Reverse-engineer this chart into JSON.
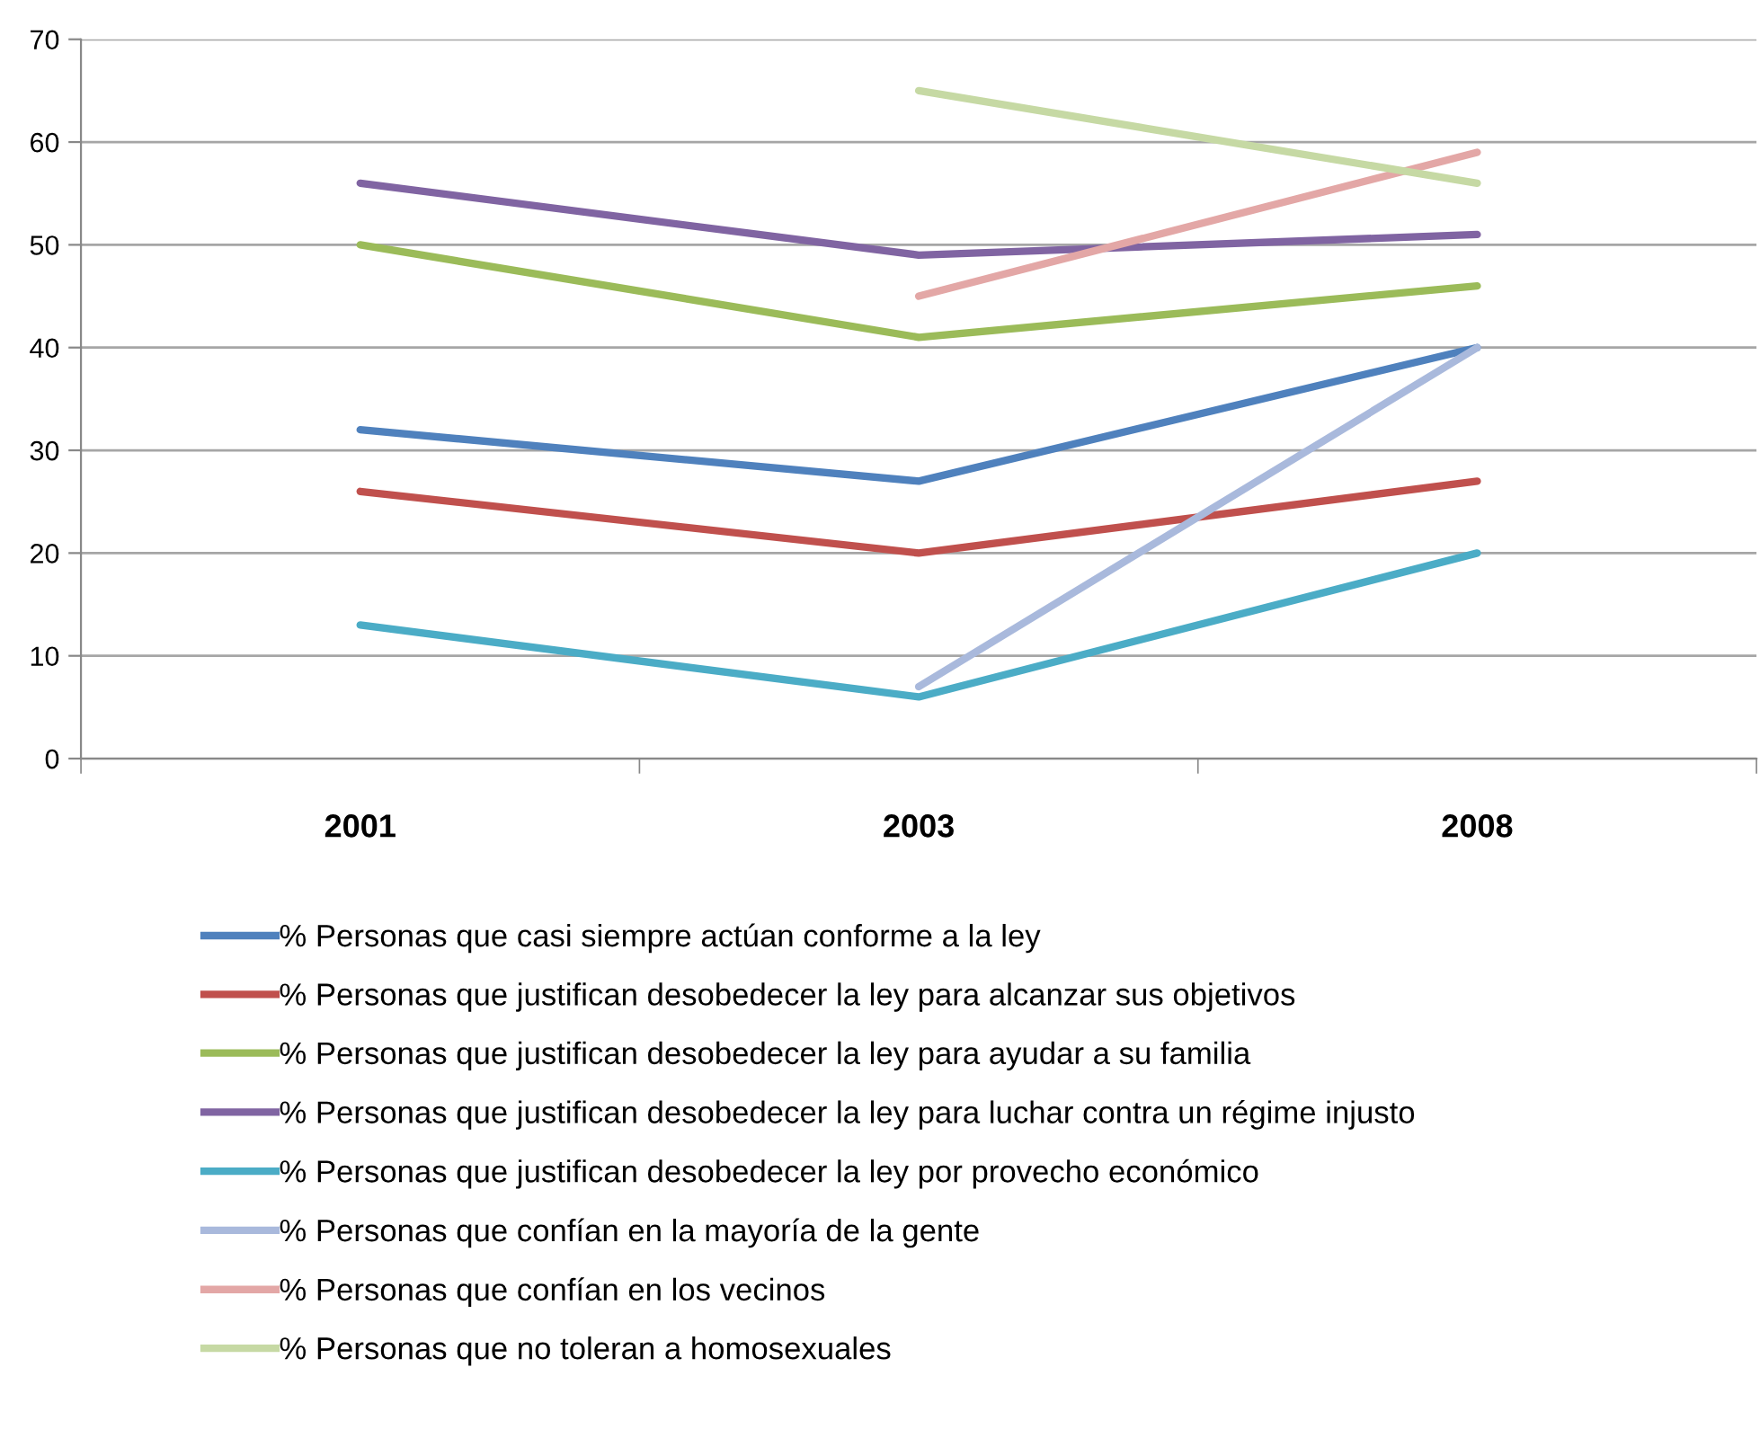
{
  "chart_data": {
    "type": "line",
    "categories": [
      "2001",
      "2003",
      "2008"
    ],
    "series": [
      {
        "name": "% Personas que casi siempre actúan conforme a la ley",
        "color": "#4f81bd",
        "values": [
          32,
          27,
          40
        ]
      },
      {
        "name": "% Personas que justifican desobedecer la ley para alcanzar sus objetivos",
        "color": "#c0504d",
        "values": [
          26,
          20,
          27
        ]
      },
      {
        "name": "% Personas que justifican desobedecer la ley para ayudar a su familia",
        "color": "#9bbb59",
        "values": [
          50,
          41,
          46
        ]
      },
      {
        "name": "% Personas que justifican desobedecer la ley para luchar contra un régime injusto",
        "color": "#8064a2",
        "values": [
          56,
          49,
          51
        ]
      },
      {
        "name": "% Personas que justifican desobedecer la ley por provecho económico",
        "color": "#4bacc6",
        "values": [
          13,
          6,
          20
        ]
      },
      {
        "name": "% Personas que confían en la mayoría de la gente",
        "color": "#a9b9dc",
        "values": [
          null,
          7,
          40
        ]
      },
      {
        "name": "% Personas que confían en los vecinos",
        "color": "#e3a7a6",
        "values": [
          null,
          45,
          59
        ]
      },
      {
        "name": "% Personas que no toleran a homosexuales",
        "color": "#c6d9a4",
        "values": [
          null,
          65,
          56
        ]
      }
    ],
    "ylim": [
      0,
      70
    ],
    "yticks": [
      0,
      10,
      20,
      30,
      40,
      50,
      60,
      70
    ],
    "grid": "y",
    "legend": "bottom",
    "marker": "none",
    "line_style": "solid"
  }
}
